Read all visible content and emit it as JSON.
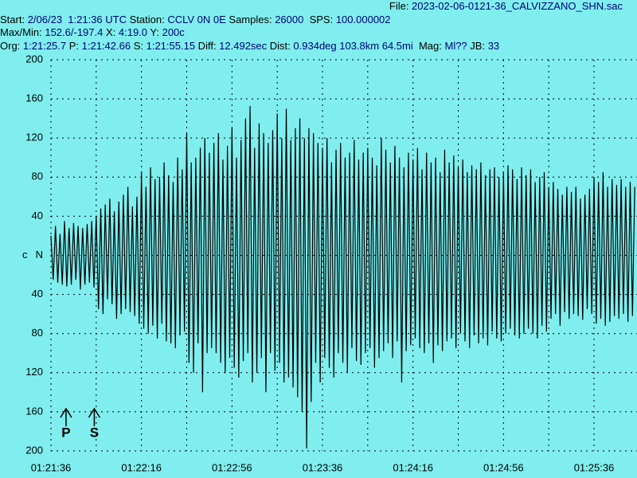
{
  "chart_data": {
    "type": "waveform",
    "header": [
      [
        "File: ",
        "2023-02-06-0121-36_CALVIZZANO_SHN.sac"
      ],
      [
        "Start: ",
        "2/06/23  1:21:36 UTC",
        " Station: ",
        "CCLV 0N 0E",
        " Samples: ",
        "26000",
        "  SPS: ",
        "100.000002"
      ],
      [
        "Max/Min: ",
        "152.6/-197.4",
        " X: ",
        "4:19.0",
        " Y: ",
        "200c"
      ],
      [
        "Org: ",
        "1:21:25.7",
        " P: ",
        "1:21:42.66",
        " S: ",
        "1:21:55.15",
        " Diff: ",
        "12.492sec",
        " Dist: ",
        "0.934deg 103.8km 64.5mi",
        "  Mag: ",
        "Ml??",
        " JB: ",
        "33"
      ]
    ],
    "channel_label": "c",
    "color": "#000000",
    "background": "#80eeee",
    "grid": true,
    "xlim": [
      0,
      259
    ],
    "ylim": [
      -200,
      200
    ],
    "yticks": [
      {
        "value": 200,
        "label": "200"
      },
      {
        "value": 160,
        "label": "160"
      },
      {
        "value": 120,
        "label": "120"
      },
      {
        "value": 80,
        "label": "80"
      },
      {
        "value": 40,
        "label": "40"
      },
      {
        "value": 0,
        "label": "N"
      },
      {
        "value": -40,
        "label": "40"
      },
      {
        "value": -80,
        "label": "80"
      },
      {
        "value": -120,
        "label": "120"
      },
      {
        "value": -160,
        "label": "160"
      },
      {
        "value": -200,
        "label": "200"
      }
    ],
    "xticks": [
      {
        "value": 0,
        "label": "01:21:36"
      },
      {
        "value": 40,
        "label": "01:22:16"
      },
      {
        "value": 80,
        "label": "01:22:56"
      },
      {
        "value": 120,
        "label": "01:23:36"
      },
      {
        "value": 160,
        "label": "01:24:16"
      },
      {
        "value": 200,
        "label": "01:24:56"
      },
      {
        "value": 240,
        "label": "01:25:36"
      }
    ],
    "x_minor_grid": [
      20,
      60,
      100,
      140,
      180,
      220
    ],
    "picks": [
      {
        "name": "P",
        "x": 6.66
      },
      {
        "name": "S",
        "x": 19.15
      }
    ],
    "x": [
      0,
      1,
      2,
      3,
      4,
      5,
      6,
      7,
      8,
      9,
      10,
      11,
      12,
      13,
      14,
      15,
      16,
      17,
      18,
      19,
      20,
      21,
      22,
      23,
      24,
      25,
      26,
      27,
      28,
      29,
      30,
      31,
      32,
      33,
      34,
      35,
      36,
      37,
      38,
      39,
      40,
      41,
      42,
      43,
      44,
      45,
      46,
      47,
      48,
      49,
      50,
      51,
      52,
      53,
      54,
      55,
      56,
      57,
      58,
      59,
      60,
      61,
      62,
      63,
      64,
      65,
      66,
      67,
      68,
      69,
      70,
      71,
      72,
      73,
      74,
      75,
      76,
      77,
      78,
      79,
      80,
      81,
      82,
      83,
      84,
      85,
      86,
      87,
      88,
      89,
      90,
      91,
      92,
      93,
      94,
      95,
      96,
      97,
      98,
      99,
      100,
      101,
      102,
      103,
      104,
      105,
      106,
      107,
      108,
      109,
      110,
      111,
      112,
      113,
      114,
      115,
      116,
      117,
      118,
      119,
      120,
      121,
      122,
      123,
      124,
      125,
      126,
      127,
      128,
      129,
      130,
      131,
      132,
      133,
      134,
      135,
      136,
      137,
      138,
      139,
      140,
      141,
      142,
      143,
      144,
      145,
      146,
      147,
      148,
      149,
      150,
      151,
      152,
      153,
      154,
      155,
      156,
      157,
      158,
      159,
      160,
      161,
      162,
      163,
      164,
      165,
      166,
      167,
      168,
      169,
      170,
      171,
      172,
      173,
      174,
      175,
      176,
      177,
      178,
      179,
      180,
      181,
      182,
      183,
      184,
      185,
      186,
      187,
      188,
      189,
      190,
      191,
      192,
      193,
      194,
      195,
      196,
      197,
      198,
      199,
      200,
      201,
      202,
      203,
      204,
      205,
      206,
      207,
      208,
      209,
      210,
      211,
      212,
      213,
      214,
      215,
      216,
      217,
      218,
      219,
      220,
      221,
      222,
      223,
      224,
      225,
      226,
      227,
      228,
      229,
      230,
      231,
      232,
      233,
      234,
      235,
      236,
      237,
      238,
      239,
      240,
      241,
      242,
      243,
      244,
      245,
      246,
      247,
      248,
      249,
      250,
      251,
      252,
      253,
      254,
      255,
      256,
      257,
      258
    ],
    "values": [
      20,
      -25,
      30,
      -28,
      22,
      -30,
      35,
      -32,
      28,
      -30,
      33,
      -25,
      30,
      -35,
      28,
      -30,
      32,
      -28,
      35,
      -33,
      40,
      -55,
      48,
      -60,
      52,
      -45,
      58,
      -50,
      45,
      -65,
      55,
      -60,
      62,
      -55,
      70,
      -58,
      50,
      -62,
      60,
      -70,
      85,
      -75,
      70,
      -80,
      90,
      -72,
      78,
      -85,
      80,
      -70,
      95,
      -88,
      82,
      -90,
      75,
      -95,
      100,
      -82,
      88,
      -78,
      125,
      -110,
      95,
      -120,
      100,
      -90,
      110,
      -140,
      120,
      -100,
      105,
      -95,
      115,
      -100,
      125,
      -110,
      98,
      -120,
      112,
      -105,
      130,
      -115,
      100,
      -125,
      118,
      -108,
      140,
      -100,
      152.6,
      -130,
      110,
      -120,
      135,
      -105,
      125,
      -140,
      115,
      -100,
      128,
      -118,
      145,
      -110,
      120,
      -130,
      150,
      -125,
      118,
      -135,
      130,
      -145,
      140,
      -160,
      120,
      -197.4,
      130,
      -150,
      125,
      -110,
      115,
      -130,
      110,
      -105,
      120,
      -115,
      95,
      -125,
      108,
      -100,
      115,
      -110,
      100,
      -120,
      105,
      -95,
      118,
      -108,
      98,
      -112,
      105,
      -100,
      110,
      -95,
      100,
      -115,
      92,
      -105,
      120,
      -98,
      108,
      -90,
      95,
      -105,
      112,
      -88,
      100,
      -130,
      90,
      -98,
      105,
      -92,
      98,
      -85,
      110,
      -95,
      88,
      -100,
      105,
      -90,
      95,
      -110,
      100,
      -92,
      85,
      -98,
      108,
      -88,
      95,
      -85,
      102,
      -95,
      90,
      -80,
      98,
      -88,
      85,
      -95,
      92,
      -82,
      88,
      -90,
      95,
      -85,
      82,
      -92,
      88,
      -78,
      90,
      -85,
      80,
      -88,
      85,
      -80,
      92,
      -75,
      88,
      -82,
      78,
      -85,
      90,
      -80,
      82,
      -75,
      88,
      -80,
      75,
      -85,
      80,
      -72,
      85,
      -78,
      70,
      -65,
      75,
      -60,
      68,
      -72,
      62,
      -58,
      70,
      -65,
      65,
      -60,
      70,
      -62,
      58,
      -66,
      62,
      -55,
      68,
      -60,
      80,
      -70,
      75,
      -65,
      85,
      -72,
      70,
      -68,
      78,
      -62,
      72,
      -65,
      78,
      -60,
      70,
      -68,
      75,
      -62,
      70
    ]
  }
}
